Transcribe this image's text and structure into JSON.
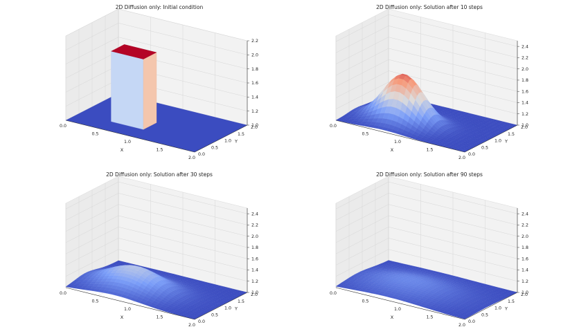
{
  "chart_data": [
    {
      "type": "surface",
      "title": "2D Diffusion only: Initial condition",
      "xlabel": "X",
      "ylabel": "Y",
      "xticks": [
        "0.0",
        "0.5",
        "1.0",
        "1.5",
        "2.0"
      ],
      "yticks": [
        "0.0",
        "0.5",
        "1.0",
        "1.5",
        "2.0"
      ],
      "zticks": [
        "1.0",
        "1.2",
        "1.4",
        "1.6",
        "1.8",
        "2.0",
        "2.2"
      ],
      "xlim": [
        0,
        2
      ],
      "ylim": [
        0,
        2
      ],
      "zlim": [
        1.0,
        2.2
      ],
      "colormap": "coolwarm",
      "surface": {
        "kind": "hat",
        "base": 1.0,
        "peak": 2.0,
        "x_range": [
          0.5,
          1.0
        ],
        "y_range": [
          0.5,
          1.0
        ]
      }
    },
    {
      "type": "surface",
      "title": "2D Diffusion only: Solution after 10 steps",
      "xlabel": "X",
      "ylabel": "Y",
      "xticks": [
        "0.0",
        "0.5",
        "1.0",
        "1.5",
        "2.0"
      ],
      "yticks": [
        "0.0",
        "0.5",
        "1.0",
        "1.5",
        "2.0"
      ],
      "zticks": [
        "1.0",
        "1.2",
        "1.4",
        "1.6",
        "1.8",
        "2.0",
        "2.2",
        "2.4"
      ],
      "xlim": [
        0,
        2
      ],
      "ylim": [
        0,
        2
      ],
      "zlim": [
        1.0,
        2.5
      ],
      "colormap": "coolwarm",
      "surface": {
        "kind": "gaussian",
        "base": 1.0,
        "peak": 1.85,
        "center": [
          0.75,
          0.75
        ],
        "sigma": 0.3
      }
    },
    {
      "type": "surface",
      "title": "2D Diffusion only: Solution after 30 steps",
      "xlabel": "X",
      "ylabel": "Y",
      "xticks": [
        "0.0",
        "0.5",
        "1.0",
        "1.5",
        "2.0"
      ],
      "yticks": [
        "0.0",
        "0.5",
        "1.0",
        "1.5",
        "2.0"
      ],
      "zticks": [
        "1.0",
        "1.2",
        "1.4",
        "1.6",
        "1.8",
        "2.0",
        "2.2",
        "2.4"
      ],
      "xlim": [
        0,
        2
      ],
      "ylim": [
        0,
        2
      ],
      "zlim": [
        1.0,
        2.5
      ],
      "colormap": "coolwarm",
      "surface": {
        "kind": "gaussian",
        "base": 1.0,
        "peak": 1.4,
        "center": [
          0.75,
          0.75
        ],
        "sigma": 0.42
      }
    },
    {
      "type": "surface",
      "title": "2D Diffusion only: Solution after 90 steps",
      "xlabel": "X",
      "ylabel": "Y",
      "xticks": [
        "0.0",
        "0.5",
        "1.0",
        "1.5",
        "2.0"
      ],
      "yticks": [
        "0.0",
        "0.5",
        "1.0",
        "1.5",
        "2.0"
      ],
      "zticks": [
        "1.0",
        "1.2",
        "1.4",
        "1.6",
        "1.8",
        "2.0",
        "2.2",
        "2.4"
      ],
      "xlim": [
        0,
        2
      ],
      "ylim": [
        0,
        2
      ],
      "zlim": [
        1.0,
        2.5
      ],
      "colormap": "coolwarm",
      "surface": {
        "kind": "gaussian",
        "base": 1.0,
        "peak": 1.18,
        "center": [
          0.8,
          0.8
        ],
        "sigma": 0.55
      }
    }
  ]
}
